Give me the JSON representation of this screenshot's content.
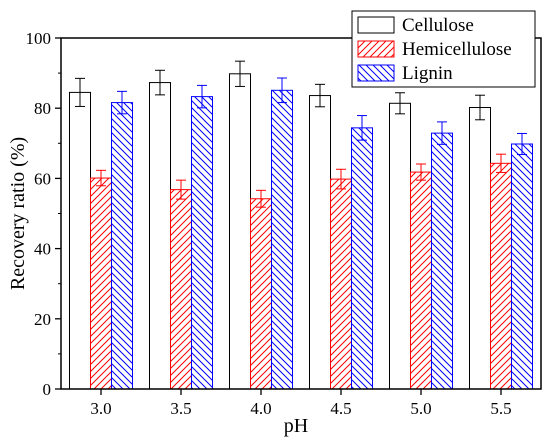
{
  "chart_data": {
    "type": "bar",
    "xlabel": "pH",
    "ylabel": "Recovery ratio (%)",
    "ylim": [
      0,
      100
    ],
    "yticks": [
      0,
      20,
      40,
      60,
      80,
      100
    ],
    "categories": [
      "3.0",
      "3.5",
      "4.0",
      "4.5",
      "5.0",
      "5.5"
    ],
    "series": [
      {
        "name": "Cellulose",
        "values": [
          84.5,
          87.3,
          89.8,
          83.6,
          81.4,
          80.2
        ],
        "errors": [
          4.0,
          3.5,
          3.6,
          3.2,
          3.0,
          3.5
        ],
        "fill": "#ffffff",
        "stroke": "#000000",
        "pattern": "none"
      },
      {
        "name": "Hemicellulose",
        "values": [
          60.1,
          56.8,
          54.2,
          59.8,
          61.8,
          64.3
        ],
        "errors": [
          2.2,
          2.7,
          2.4,
          2.8,
          2.3,
          2.6
        ],
        "fill": "#ffffff",
        "stroke": "#ff0000",
        "pattern": "diagonal-up"
      },
      {
        "name": "Lignin",
        "values": [
          81.6,
          83.3,
          85.1,
          74.4,
          72.9,
          69.8
        ],
        "errors": [
          3.2,
          3.2,
          3.5,
          3.5,
          3.2,
          3.0
        ],
        "fill": "#ffffff",
        "stroke": "#0000ff",
        "pattern": "diagonal-down"
      }
    ],
    "legend": "top-right",
    "grid": false
  }
}
